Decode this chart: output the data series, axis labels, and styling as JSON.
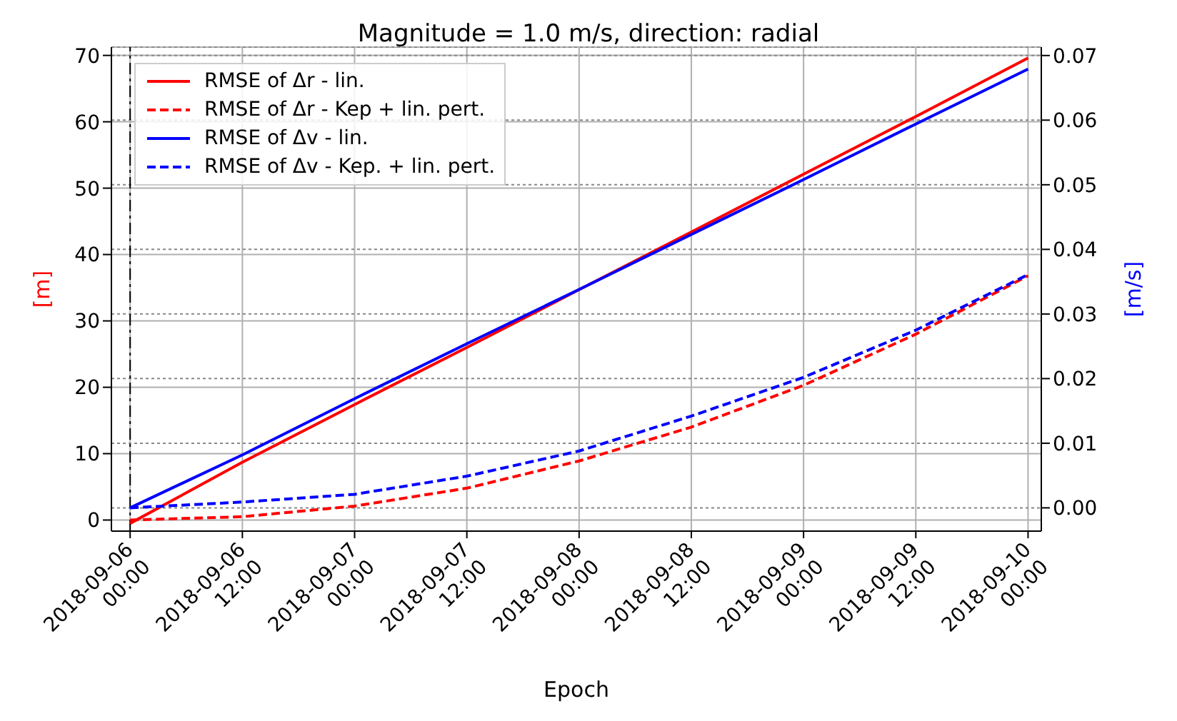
{
  "chart_data": {
    "type": "line",
    "title": "Magnitude = 1.0 m/s, direction: radial",
    "xlabel": "Epoch",
    "ylabel": "[m]",
    "y2label": "[m/s]",
    "x": [
      "2018-09-06T00:00",
      "2018-09-06T12:00",
      "2018-09-07T00:00",
      "2018-09-07T12:00",
      "2018-09-08T00:00",
      "2018-09-08T12:00",
      "2018-09-09T00:00",
      "2018-09-09T12:00",
      "2018-09-10T00:00"
    ],
    "series": [
      {
        "name": "RMSE of Δr - lin.",
        "color": "#ff0000",
        "line_style": "solid",
        "values": [
          -0.5,
          8.7,
          17.4,
          26.0,
          34.7,
          43.4,
          52.1,
          60.8,
          69.6
        ]
      },
      {
        "name": "RMSE of Δr - Kep + lin. pert.",
        "color": "#ff0000",
        "line_style": "dashed",
        "values": [
          0,
          0.5,
          2.1,
          4.8,
          8.9,
          14.0,
          20.3,
          28.0,
          36.8
        ]
      },
      {
        "name": "RMSE of Δv - lin.",
        "color": "#0000ff",
        "line_style": "solid",
        "axis": "y2",
        "values": [
          0,
          0.0082,
          0.0169,
          0.0254,
          0.0338,
          0.0423,
          0.0508,
          0.0594,
          0.0679
        ]
      },
      {
        "name": "RMSE of Δv - Kep. + lin. pert.",
        "color": "#0000ff",
        "line_style": "dashed",
        "axis": "y2",
        "values": [
          0,
          0.0009,
          0.0021,
          0.0049,
          0.0088,
          0.0142,
          0.0202,
          0.0275,
          0.0361
        ]
      }
    ],
    "xlim": [
      "2018-09-05T22:00",
      "2018-09-10T01:25"
    ],
    "xticks": [
      {
        "value": "2018-09-06T00:00",
        "label": "2018-09-06 00:00"
      },
      {
        "value": "2018-09-06T12:00",
        "label": "2018-09-06 12:00"
      },
      {
        "value": "2018-09-07T00:00",
        "label": "2018-09-07 00:00"
      },
      {
        "value": "2018-09-07T12:00",
        "label": "2018-09-07 12:00"
      },
      {
        "value": "2018-09-08T00:00",
        "label": "2018-09-08 00:00"
      },
      {
        "value": "2018-09-08T12:00",
        "label": "2018-09-08 12:00"
      },
      {
        "value": "2018-09-09T00:00",
        "label": "2018-09-09 00:00"
      },
      {
        "value": "2018-09-09T12:00",
        "label": "2018-09-09 12:00"
      },
      {
        "value": "2018-09-10T00:00",
        "label": "2018-09-10 00:00"
      }
    ],
    "ylim": [
      -1.67,
      71.25
    ],
    "yticks": [
      0,
      10,
      20,
      30,
      40,
      50,
      60,
      70
    ],
    "y2lim": [
      -0.0036,
      0.0713
    ],
    "y2ticks": [
      {
        "value": 0,
        "label": "0.00"
      },
      {
        "value": 0.01,
        "label": "0.01"
      },
      {
        "value": 0.02,
        "label": "0.02"
      },
      {
        "value": 0.03,
        "label": "0.03"
      },
      {
        "value": 0.04,
        "label": "0.04"
      },
      {
        "value": 0.05,
        "label": "0.05"
      },
      {
        "value": 0.06,
        "label": "0.06"
      },
      {
        "value": 0.07,
        "label": "0.07"
      }
    ],
    "ref_lines": [
      {
        "axis": "x",
        "value": "2018-09-06T00:00",
        "color": "#000000",
        "line_style": "dashed"
      }
    ],
    "grid": true,
    "legend": "top left"
  }
}
